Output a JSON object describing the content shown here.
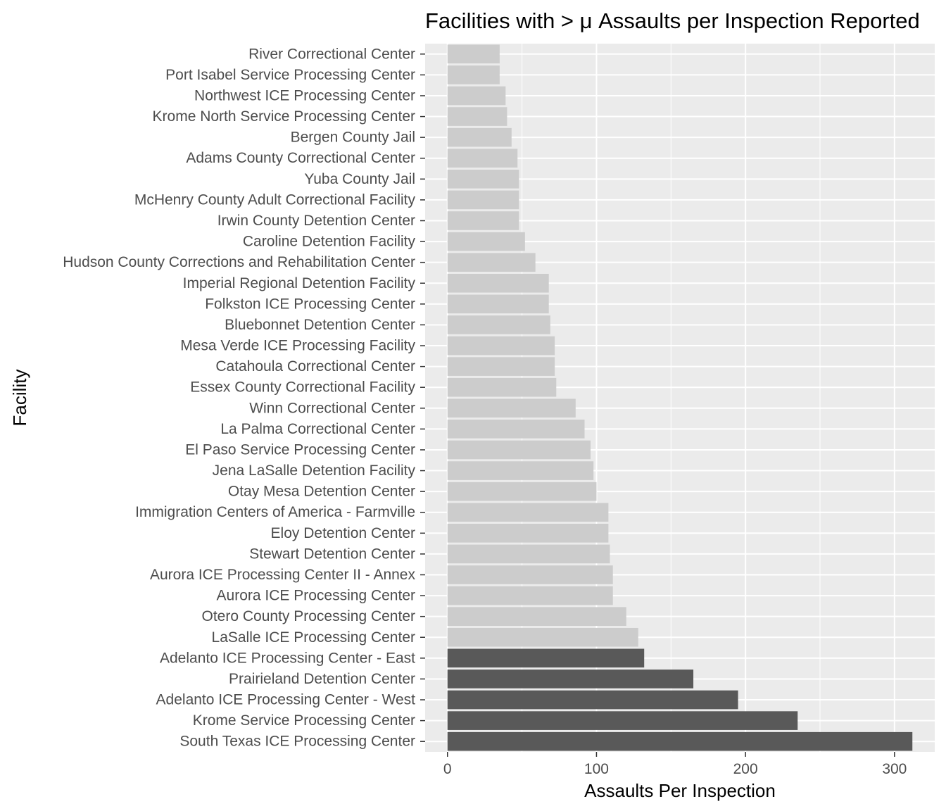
{
  "chart_data": {
    "type": "bar",
    "orientation": "horizontal",
    "title": "Facilities with > μ Assaults per Inspection Reported",
    "xlabel": "Assaults Per Inspection",
    "ylabel": "Facility",
    "xlim": [
      -15,
      327
    ],
    "x_ticks": [
      0,
      100,
      200,
      300
    ],
    "grid": true,
    "legend": "none",
    "highlight_threshold": 130,
    "colors": {
      "panel": "#ebebeb",
      "grid": "#ffffff",
      "bar_default": "#cccccc",
      "bar_highlight": "#595959",
      "text": "#4d4d4d"
    },
    "categories": [
      "River Correctional Center",
      "Port Isabel Service Processing Center",
      "Northwest ICE Processing Center",
      "Krome North Service Processing Center",
      "Bergen County Jail",
      "Adams County Correctional Center",
      "Yuba County Jail",
      "McHenry County Adult Correctional Facility",
      "Irwin County Detention Center",
      "Caroline Detention Facility",
      "Hudson County Corrections and Rehabilitation Center",
      "Imperial Regional Detention Facility",
      "Folkston ICE Processing Center",
      "Bluebonnet Detention Center",
      "Mesa Verde ICE Processing Facility",
      "Catahoula Correctional Center",
      "Essex County Correctional Facility",
      "Winn Correctional Center",
      "La Palma Correctional Center",
      "El Paso Service Processing Center",
      "Jena LaSalle Detention Facility",
      "Otay Mesa Detention Center",
      "Immigration Centers of America - Farmville",
      "Eloy Detention Center",
      "Stewart Detention Center",
      "Aurora ICE Processing Center II - Annex",
      "Aurora ICE Processing Center",
      "Otero County Processing Center",
      "LaSalle ICE Processing Center",
      "Adelanto ICE Processing Center - East",
      "Prairieland Detention Center",
      "Adelanto ICE Processing Center - West",
      "Krome Service Processing Center",
      "South Texas ICE Processing Center"
    ],
    "values": [
      35,
      35,
      39,
      40,
      43,
      47,
      48,
      48,
      48,
      52,
      59,
      68,
      68,
      69,
      72,
      72,
      73,
      86,
      92,
      96,
      98,
      100,
      108,
      108,
      109,
      111,
      111,
      120,
      128,
      132,
      165,
      195,
      235,
      312
    ]
  }
}
